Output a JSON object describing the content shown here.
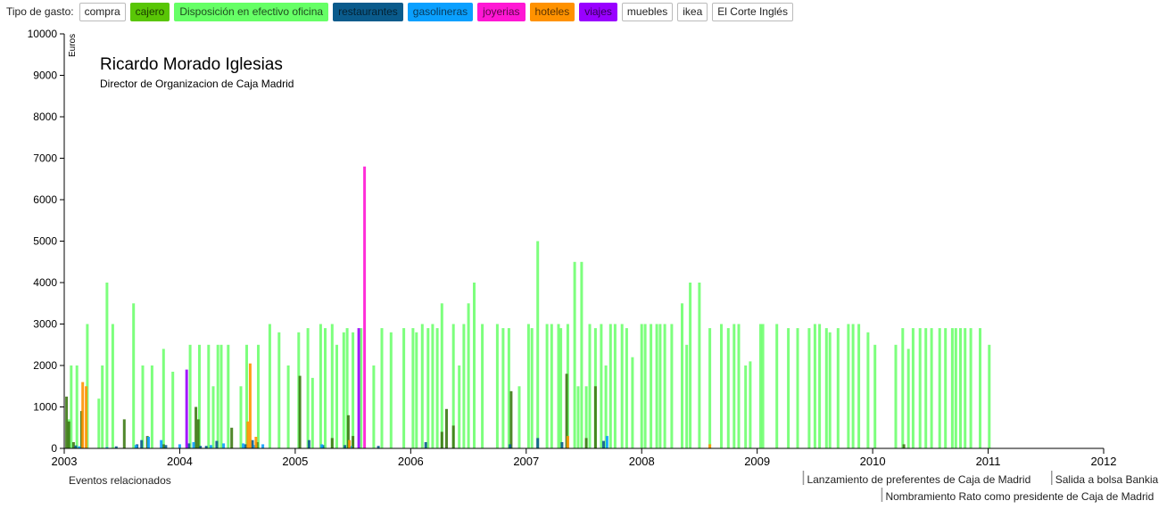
{
  "filter": {
    "label": "Tipo de gasto:",
    "buttons": [
      {
        "label": "compra",
        "color": "#ffffff",
        "text_color": "#222222"
      },
      {
        "label": "cajero",
        "color": "#59c606",
        "text_color": "#1a3a00"
      },
      {
        "label": "Disposición en efectivo oficina",
        "color": "#66ff66",
        "text_color": "#1f4d1f"
      },
      {
        "label": "restaurantes",
        "color": "#0a5b8c",
        "text_color": "#042233"
      },
      {
        "label": "gasolineras",
        "color": "#0aa0ff",
        "text_color": "#083a5c"
      },
      {
        "label": "joyerias",
        "color": "#ff17d4",
        "text_color": "#5a0848"
      },
      {
        "label": "hoteles",
        "color": "#ff9200",
        "text_color": "#5c3300"
      },
      {
        "label": "viajes",
        "color": "#9900ff",
        "text_color": "#330055"
      },
      {
        "label": "muebles",
        "color": "#ffffff",
        "text_color": "#222222"
      },
      {
        "label": "ikea",
        "color": "#ffffff",
        "text_color": "#222222"
      },
      {
        "label": "El Corte Inglés",
        "color": "#ffffff",
        "text_color": "#222222"
      }
    ]
  },
  "person": {
    "name": "Ricardo Morado Iglesias",
    "role": "Director de Organizacion de Caja Madrid"
  },
  "events": {
    "title": "Eventos relacionados",
    "items": [
      {
        "date": 2009.4,
        "label": "Lanzamiento de preferentes de Caja de Madrid"
      },
      {
        "date": 2011.55,
        "label": "Salida a bolsa Bankia"
      },
      {
        "date": 2010.08,
        "label": "Nombramiento Rato como presidente de Caja de Madrid"
      }
    ]
  },
  "chart_data": {
    "type": "bar",
    "ylabel": "Euros",
    "ylim": [
      0,
      10000
    ],
    "yticks": [
      "0",
      "1000",
      "2000",
      "3000",
      "4000",
      "5000",
      "6000",
      "7000",
      "8000",
      "9000",
      "10000"
    ],
    "xlim": [
      2003,
      2012
    ],
    "xticks": [
      "2003",
      "2004",
      "2005",
      "2006",
      "2007",
      "2008",
      "2009",
      "2010",
      "2011",
      "2012"
    ],
    "grid": false,
    "colors": {
      "cajero": "#3d7a14",
      "Disposición en efectivo oficina": "#66ff66",
      "restaurantes": "#0a5b8c",
      "gasolineras": "#0aa0ff",
      "joyerias": "#ff17d4",
      "hoteles": "#ff9200",
      "viajes": "#9900ff"
    },
    "series": [
      {
        "name": "Disposición en efectivo oficina",
        "points": [
          [
            2003.04,
            700
          ],
          [
            2003.06,
            2000
          ],
          [
            2003.11,
            2000
          ],
          [
            2003.2,
            3000
          ],
          [
            2003.3,
            1200
          ],
          [
            2003.33,
            2000
          ],
          [
            2003.37,
            4000
          ],
          [
            2003.42,
            3000
          ],
          [
            2003.6,
            3500
          ],
          [
            2003.68,
            2000
          ],
          [
            2003.76,
            2000
          ],
          [
            2003.86,
            2400
          ],
          [
            2003.94,
            1850
          ],
          [
            2004.09,
            2500
          ],
          [
            2004.17,
            2500
          ],
          [
            2004.25,
            2500
          ],
          [
            2004.29,
            1500
          ],
          [
            2004.33,
            2500
          ],
          [
            2004.36,
            2500
          ],
          [
            2004.42,
            2500
          ],
          [
            2004.53,
            1500
          ],
          [
            2004.58,
            2500
          ],
          [
            2004.68,
            2500
          ],
          [
            2004.78,
            3000
          ],
          [
            2004.86,
            2800
          ],
          [
            2004.94,
            2000
          ],
          [
            2005.03,
            2800
          ],
          [
            2005.11,
            2900
          ],
          [
            2005.15,
            1700
          ],
          [
            2005.22,
            3000
          ],
          [
            2005.26,
            2900
          ],
          [
            2005.32,
            3000
          ],
          [
            2005.36,
            2500
          ],
          [
            2005.42,
            2800
          ],
          [
            2005.45,
            2900
          ],
          [
            2005.5,
            2800
          ],
          [
            2005.57,
            2900
          ],
          [
            2005.68,
            2000
          ],
          [
            2005.75,
            2900
          ],
          [
            2005.83,
            2800
          ],
          [
            2005.94,
            2900
          ],
          [
            2006.02,
            2900
          ],
          [
            2006.05,
            2800
          ],
          [
            2006.1,
            3000
          ],
          [
            2006.15,
            2900
          ],
          [
            2006.19,
            3000
          ],
          [
            2006.23,
            2900
          ],
          [
            2006.27,
            3500
          ],
          [
            2006.37,
            3000
          ],
          [
            2006.42,
            2000
          ],
          [
            2006.46,
            3000
          ],
          [
            2006.5,
            3500
          ],
          [
            2006.55,
            4000
          ],
          [
            2006.62,
            3000
          ],
          [
            2006.75,
            3000
          ],
          [
            2006.8,
            2900
          ],
          [
            2006.85,
            2900
          ],
          [
            2006.94,
            1500
          ],
          [
            2007.02,
            3000
          ],
          [
            2007.05,
            2900
          ],
          [
            2007.1,
            5000
          ],
          [
            2007.18,
            3000
          ],
          [
            2007.22,
            3000
          ],
          [
            2007.28,
            3000
          ],
          [
            2007.3,
            2900
          ],
          [
            2007.36,
            3000
          ],
          [
            2007.42,
            4500
          ],
          [
            2007.45,
            1500
          ],
          [
            2007.48,
            4500
          ],
          [
            2007.52,
            1500
          ],
          [
            2007.55,
            3000
          ],
          [
            2007.6,
            2900
          ],
          [
            2007.65,
            3000
          ],
          [
            2007.69,
            2000
          ],
          [
            2007.73,
            3000
          ],
          [
            2007.77,
            3000
          ],
          [
            2007.83,
            3000
          ],
          [
            2007.87,
            2900
          ],
          [
            2007.92,
            2200
          ],
          [
            2008.0,
            3000
          ],
          [
            2008.03,
            3000
          ],
          [
            2008.08,
            3000
          ],
          [
            2008.13,
            3000
          ],
          [
            2008.16,
            3000
          ],
          [
            2008.2,
            3000
          ],
          [
            2008.26,
            3000
          ],
          [
            2008.35,
            3500
          ],
          [
            2008.39,
            2500
          ],
          [
            2008.42,
            4000
          ],
          [
            2008.5,
            4000
          ],
          [
            2008.59,
            2900
          ],
          [
            2008.69,
            3000
          ],
          [
            2008.75,
            2900
          ],
          [
            2008.8,
            3000
          ],
          [
            2008.84,
            3000
          ],
          [
            2008.9,
            2000
          ],
          [
            2008.94,
            2100
          ],
          [
            2009.03,
            3000
          ],
          [
            2009.05,
            3000
          ],
          [
            2009.17,
            3000
          ],
          [
            2009.27,
            2900
          ],
          [
            2009.35,
            2900
          ],
          [
            2009.45,
            2900
          ],
          [
            2009.5,
            3000
          ],
          [
            2009.54,
            3000
          ],
          [
            2009.6,
            2900
          ],
          [
            2009.63,
            2800
          ],
          [
            2009.7,
            2900
          ],
          [
            2009.79,
            3000
          ],
          [
            2009.83,
            3000
          ],
          [
            2009.88,
            3000
          ],
          [
            2009.96,
            2800
          ],
          [
            2010.02,
            2500
          ],
          [
            2010.2,
            2500
          ],
          [
            2010.26,
            2900
          ],
          [
            2010.31,
            2400
          ],
          [
            2010.35,
            2900
          ],
          [
            2010.41,
            2900
          ],
          [
            2010.46,
            2900
          ],
          [
            2010.51,
            2900
          ],
          [
            2010.58,
            2900
          ],
          [
            2010.63,
            2900
          ],
          [
            2010.69,
            2900
          ],
          [
            2010.72,
            2900
          ],
          [
            2010.76,
            2900
          ],
          [
            2010.8,
            2900
          ],
          [
            2010.85,
            2900
          ],
          [
            2010.93,
            2900
          ],
          [
            2011.01,
            2500
          ]
        ]
      },
      {
        "name": "cajero",
        "points": [
          [
            2003.02,
            1250
          ],
          [
            2003.04,
            650
          ],
          [
            2003.08,
            150
          ],
          [
            2003.15,
            900
          ],
          [
            2003.52,
            700
          ],
          [
            2003.72,
            300
          ],
          [
            2003.86,
            100
          ],
          [
            2004.14,
            1000
          ],
          [
            2004.16,
            700
          ],
          [
            2004.45,
            500
          ],
          [
            2004.67,
            150
          ],
          [
            2005.04,
            1750
          ],
          [
            2005.32,
            250
          ],
          [
            2005.46,
            800
          ],
          [
            2005.5,
            300
          ],
          [
            2006.27,
            400
          ],
          [
            2006.31,
            950
          ],
          [
            2006.37,
            550
          ],
          [
            2006.87,
            1380
          ],
          [
            2007.35,
            1800
          ],
          [
            2007.52,
            250
          ],
          [
            2007.6,
            1500
          ],
          [
            2010.27,
            100
          ]
        ]
      },
      {
        "name": "restaurantes",
        "points": [
          [
            2003.1,
            70
          ],
          [
            2003.45,
            50
          ],
          [
            2003.63,
            100
          ],
          [
            2003.67,
            200
          ],
          [
            2003.88,
            80
          ],
          [
            2004.08,
            120
          ],
          [
            2004.18,
            60
          ],
          [
            2004.23,
            60
          ],
          [
            2004.32,
            180
          ],
          [
            2004.57,
            100
          ],
          [
            2004.63,
            200
          ],
          [
            2005.12,
            200
          ],
          [
            2005.24,
            80
          ],
          [
            2005.43,
            80
          ],
          [
            2005.72,
            60
          ],
          [
            2006.13,
            150
          ],
          [
            2006.86,
            100
          ],
          [
            2007.1,
            250
          ],
          [
            2007.31,
            150
          ],
          [
            2007.67,
            180
          ]
        ]
      },
      {
        "name": "gasolineras",
        "points": [
          [
            2003.13,
            50
          ],
          [
            2003.37,
            30
          ],
          [
            2003.62,
            80
          ],
          [
            2003.73,
            280
          ],
          [
            2003.84,
            200
          ],
          [
            2004.0,
            100
          ],
          [
            2004.12,
            150
          ],
          [
            2004.27,
            80
          ],
          [
            2004.38,
            120
          ],
          [
            2004.55,
            120
          ],
          [
            2004.65,
            80
          ],
          [
            2004.72,
            100
          ],
          [
            2005.23,
            100
          ],
          [
            2005.48,
            60
          ],
          [
            2007.7,
            300
          ]
        ]
      },
      {
        "name": "joyerias",
        "points": [
          [
            2005.6,
            6800
          ]
        ]
      },
      {
        "name": "hoteles",
        "points": [
          [
            2003.16,
            1600
          ],
          [
            2003.19,
            1500
          ],
          [
            2004.59,
            650
          ],
          [
            2004.61,
            2050
          ],
          [
            2004.66,
            280
          ],
          [
            2005.47,
            200
          ],
          [
            2007.36,
            300
          ],
          [
            2008.59,
            100
          ]
        ]
      },
      {
        "name": "viajes",
        "points": [
          [
            2004.06,
            1900
          ],
          [
            2005.55,
            2900
          ]
        ]
      }
    ]
  }
}
